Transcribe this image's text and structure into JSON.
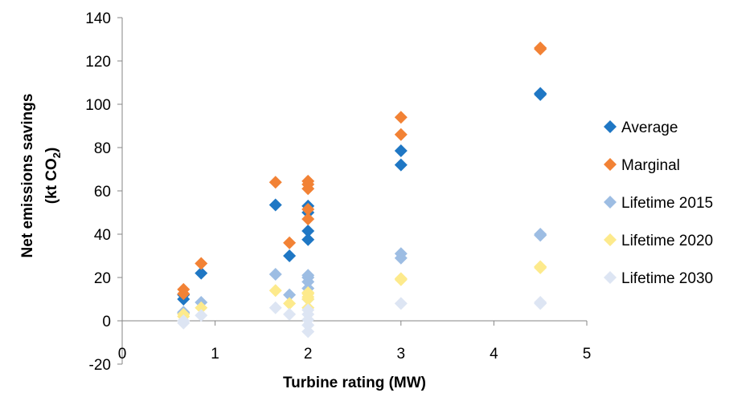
{
  "chart_data": {
    "type": "scatter",
    "xlabel": "Turbine rating (MW)",
    "ylabel": {
      "line1": "Net emissions savings",
      "line2_prefix": "(kt CO",
      "line2_subscript": "2",
      "line2_suffix": ")"
    },
    "xlim": [
      0,
      5
    ],
    "ylim": [
      -20,
      140
    ],
    "x_ticks": [
      "0",
      "1",
      "2",
      "3",
      "4",
      "5"
    ],
    "y_ticks": [
      "-20",
      "0",
      "20",
      "40",
      "60",
      "80",
      "100",
      "120",
      "140"
    ],
    "grid": false,
    "legend_position": "right",
    "series": [
      {
        "name": "Average",
        "color": "#1f77c4",
        "points": [
          [
            0.66,
            10
          ],
          [
            0.66,
            12
          ],
          [
            0.85,
            22
          ],
          [
            1.65,
            53.5
          ],
          [
            1.8,
            30
          ],
          [
            2.0,
            53
          ],
          [
            2.0,
            50
          ],
          [
            2.0,
            41.5
          ],
          [
            2.0,
            37.5
          ],
          [
            3.0,
            78.5
          ],
          [
            3.0,
            72
          ],
          [
            4.5,
            104.5
          ],
          [
            4.5,
            105
          ]
        ]
      },
      {
        "name": "Marginal",
        "color": "#f28235",
        "points": [
          [
            0.66,
            12.5
          ],
          [
            0.66,
            14.5
          ],
          [
            0.85,
            26.5
          ],
          [
            1.65,
            64
          ],
          [
            1.8,
            36
          ],
          [
            2.0,
            64.5
          ],
          [
            2.0,
            63
          ],
          [
            2.0,
            61
          ],
          [
            2.0,
            51.5
          ],
          [
            2.0,
            47
          ],
          [
            3.0,
            94
          ],
          [
            3.0,
            86
          ],
          [
            4.5,
            126
          ],
          [
            4.5,
            125.5
          ]
        ]
      },
      {
        "name": "Lifetime 2015",
        "color": "#9dbde3",
        "points": [
          [
            0.66,
            4
          ],
          [
            0.66,
            3.5
          ],
          [
            0.85,
            8.5
          ],
          [
            1.65,
            21.5
          ],
          [
            1.8,
            12
          ],
          [
            2.0,
            21
          ],
          [
            2.0,
            20
          ],
          [
            2.0,
            18
          ],
          [
            2.0,
            15
          ],
          [
            2.0,
            10
          ],
          [
            3.0,
            31
          ],
          [
            3.0,
            29
          ],
          [
            4.5,
            40
          ],
          [
            4.5,
            39.5
          ]
        ]
      },
      {
        "name": "Lifetime 2020",
        "color": "#fdea8c",
        "points": [
          [
            0.66,
            2
          ],
          [
            0.66,
            3
          ],
          [
            0.85,
            6
          ],
          [
            1.65,
            14
          ],
          [
            1.8,
            8
          ],
          [
            2.0,
            13
          ],
          [
            2.0,
            12.5
          ],
          [
            2.0,
            11
          ],
          [
            2.0,
            10
          ],
          [
            2.0,
            6
          ],
          [
            3.0,
            19.5
          ],
          [
            3.0,
            19
          ],
          [
            4.5,
            25
          ],
          [
            4.5,
            24.5
          ]
        ]
      },
      {
        "name": "Lifetime 2030",
        "color": "#dde5f3",
        "points": [
          [
            0.66,
            0
          ],
          [
            0.66,
            -1
          ],
          [
            0.85,
            2.5
          ],
          [
            1.65,
            6
          ],
          [
            1.8,
            3
          ],
          [
            2.0,
            5
          ],
          [
            2.0,
            3
          ],
          [
            2.0,
            0.5
          ],
          [
            2.0,
            -2
          ],
          [
            2.0,
            -5
          ],
          [
            3.0,
            8
          ],
          [
            4.5,
            8.5
          ],
          [
            4.5,
            8
          ]
        ]
      }
    ]
  }
}
